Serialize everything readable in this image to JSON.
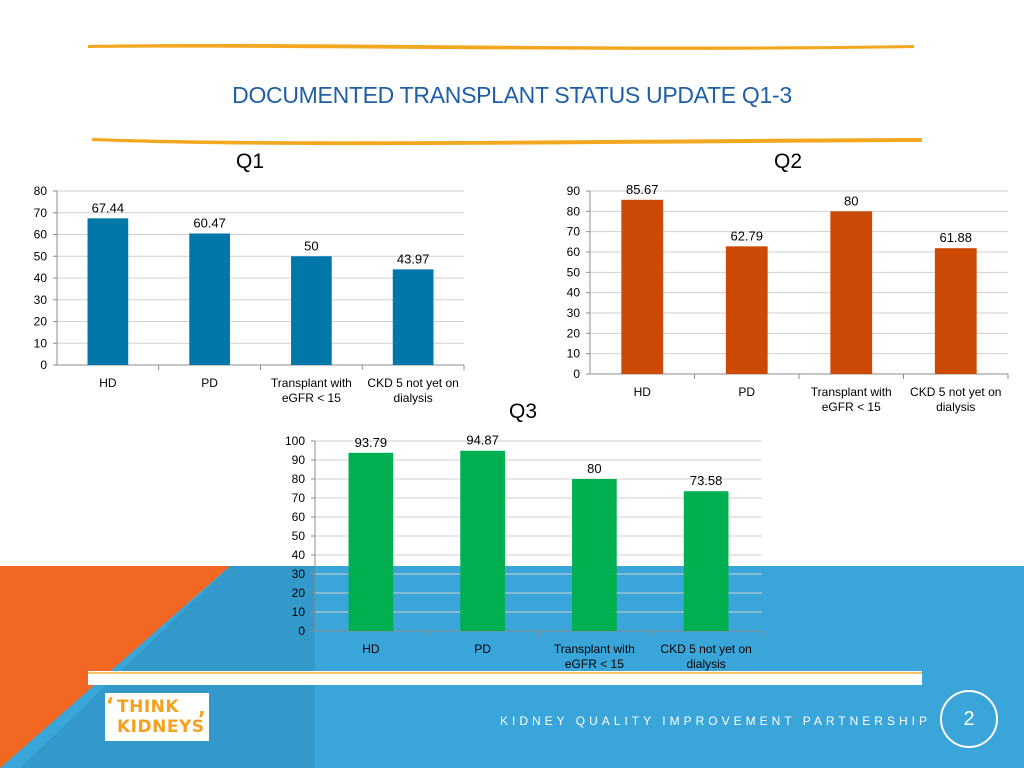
{
  "slide": {
    "title": "DOCUMENTED TRANSPLANT STATUS UPDATE Q1-3",
    "footer": "KIDNEY QUALITY IMPROVEMENT PARTNERSHIP",
    "page_number": "2",
    "logo_line1": "THINK",
    "logo_line2": "KIDNEYS"
  },
  "colors": {
    "title": "#1f5fa8",
    "brush": "#f2a71f",
    "q1": "#0077a8",
    "q2": "#cc4a06",
    "q3": "#00b050",
    "blue_band": "#3aa5d9",
    "orange_band": "#f26722",
    "logo": "#f4a21b"
  },
  "chart_data": [
    {
      "type": "bar",
      "title": "Q1",
      "categories": [
        "HD",
        "PD",
        "Transplant with eGFR < 15",
        "CKD 5 not yet on dialysis"
      ],
      "values": [
        67.44,
        60.47,
        50,
        43.97
      ],
      "value_labels": [
        "67.44",
        "60.47",
        "50",
        "43.97"
      ],
      "ylim": [
        0,
        80
      ],
      "yticks": [
        0,
        10,
        20,
        30,
        40,
        50,
        60,
        70,
        80
      ],
      "grid": true
    },
    {
      "type": "bar",
      "title": "Q2",
      "categories": [
        "HD",
        "PD",
        "Transplant with eGFR < 15",
        "CKD 5 not yet on dialysis"
      ],
      "values": [
        85.67,
        62.79,
        80,
        61.88
      ],
      "value_labels": [
        "85.67",
        "62.79",
        "80",
        "61.88"
      ],
      "ylim": [
        0,
        90
      ],
      "yticks": [
        0,
        10,
        20,
        30,
        40,
        50,
        60,
        70,
        80,
        90
      ],
      "grid": true
    },
    {
      "type": "bar",
      "title": "Q3",
      "categories": [
        "HD",
        "PD",
        "Transplant with eGFR < 15",
        "CKD 5 not yet on dialysis"
      ],
      "values": [
        93.79,
        94.87,
        80,
        73.58
      ],
      "value_labels": [
        "93.79",
        "94.87",
        "80",
        "73.58"
      ],
      "ylim": [
        0,
        100
      ],
      "yticks": [
        0,
        10,
        20,
        30,
        40,
        50,
        60,
        70,
        80,
        90,
        100
      ],
      "grid": true
    }
  ]
}
